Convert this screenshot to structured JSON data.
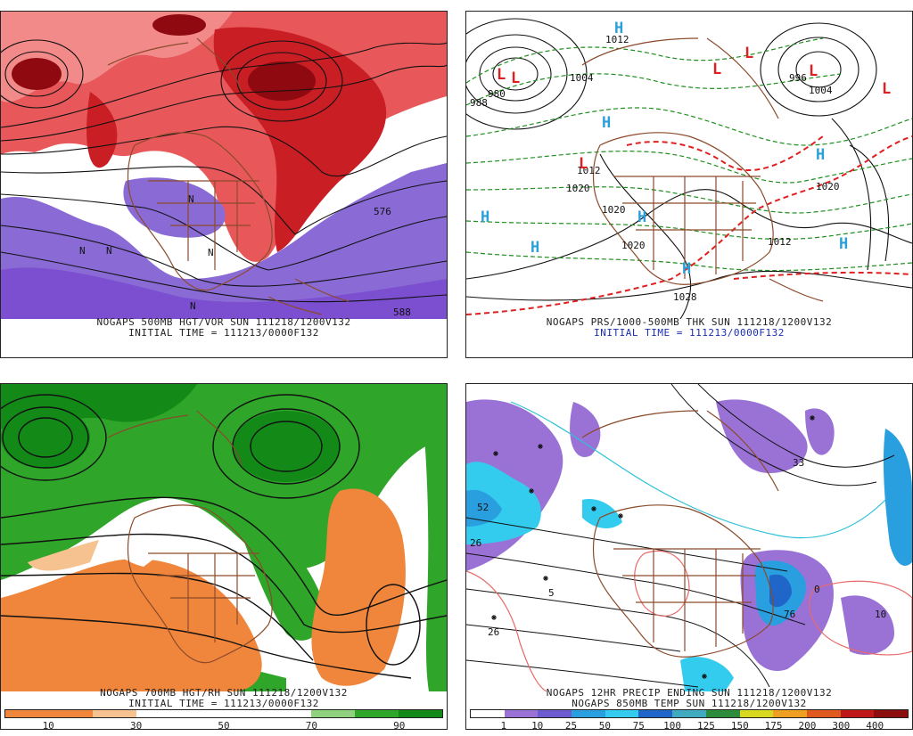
{
  "panels": [
    {
      "id": "p1",
      "lines": [
        "NOGAPS 500MB HGT/VOR SUN 111218/1200V132",
        "INITIAL TIME = 111213/0000F132"
      ],
      "labels": [
        "576",
        "588",
        "N",
        "N",
        "N",
        "N",
        "N"
      ]
    },
    {
      "id": "p2",
      "lines": [
        "NOGAPS PRS/1000-500MB THK SUN 111218/1200V132",
        "INITIAL TIME = 111213/0000F132"
      ],
      "pressure_labels": [
        "1012",
        "1004",
        "980",
        "988",
        "1012",
        "1020",
        "1020",
        "1020",
        "1028",
        "1012",
        "1004",
        "996",
        "1020"
      ],
      "highs": [
        "H",
        "H",
        "H",
        "H",
        "H",
        "H",
        "H",
        "H"
      ],
      "lows": [
        "L",
        "L",
        "L",
        "L",
        "L",
        "L",
        "L"
      ]
    },
    {
      "id": "p3",
      "lines": [
        "NOGAPS 700MB HGT/RH SUN 111218/1200V132",
        "INITIAL TIME = 111213/0000F132"
      ],
      "legend": {
        "colors": [
          "#f0863b",
          "#f0863b",
          "#f6c28f",
          "#ffffff",
          "#ffffff",
          "#ffffff",
          "#ffffff",
          "#8fd17e",
          "#2fa52a",
          "#138a18"
        ],
        "labels": [
          "10",
          "30",
          "50",
          "70",
          "90"
        ]
      }
    },
    {
      "id": "p4",
      "lines": [
        "NOGAPS 12HR PRECIP ENDING SUN 111218/1200V132",
        "NOGAPS 850MB TEMP SUN 111218/1200V132"
      ],
      "labels": [
        "52",
        "26",
        "76",
        "26",
        "0",
        "5",
        "33",
        "10"
      ],
      "legend": {
        "colors": [
          "#ffffff",
          "#9a72d6",
          "#6d5bd0",
          "#2a9fe0",
          "#33ccee",
          "#1f66c8",
          "#3faac0",
          "#2d8c3c",
          "#d8d820",
          "#f0a020",
          "#e05a20",
          "#c01818",
          "#8b0d0d"
        ],
        "labels": [
          "1",
          "10",
          "25",
          "50",
          "75",
          "100",
          "125",
          "150",
          "175",
          "200",
          "300",
          "400"
        ]
      }
    }
  ]
}
